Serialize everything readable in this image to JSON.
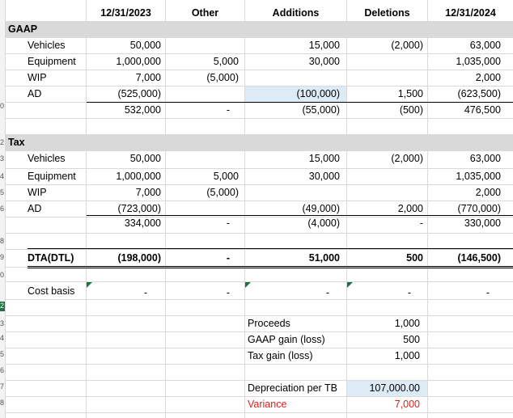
{
  "header": {
    "c1": "12/31/2023",
    "c2": "Other",
    "c3": "Additions",
    "c4": "Deletions",
    "c5": "12/31/2024"
  },
  "gaap": {
    "title": "GAAP",
    "rows": [
      {
        "label": "Vehicles",
        "v1": "50,000",
        "v2": "",
        "v3": "15,000",
        "v4": "(2,000)",
        "v5": "63,000"
      },
      {
        "label": "Equipment",
        "v1": "1,000,000",
        "v2": "5,000",
        "v3": "30,000",
        "v4": "",
        "v5": "1,035,000"
      },
      {
        "label": "WIP",
        "v1": "7,000",
        "v2": "(5,000)",
        "v3": "",
        "v4": "",
        "v5": "2,000"
      },
      {
        "label": "AD",
        "v1": "(525,000)",
        "v2": "",
        "v3": "(100,000)",
        "v4": "1,500",
        "v5": "(623,500)"
      }
    ],
    "total": {
      "v1": "532,000",
      "v2": "-",
      "v3": "(55,000)",
      "v4": "(500)",
      "v5": "476,500"
    }
  },
  "tax": {
    "title": "Tax",
    "rows": [
      {
        "label": "Vehicles",
        "v1": "50,000",
        "v2": "",
        "v3": "15,000",
        "v4": "(2,000)",
        "v5": "63,000"
      },
      {
        "label": "Equipment",
        "v1": "1,000,000",
        "v2": "5,000",
        "v3": "30,000",
        "v4": "",
        "v5": "1,035,000"
      },
      {
        "label": "WIP",
        "v1": "7,000",
        "v2": "(5,000)",
        "v3": "",
        "v4": "",
        "v5": "2,000"
      },
      {
        "label": "AD",
        "v1": "(723,000)",
        "v2": "",
        "v3": "(49,000)",
        "v4": "2,000",
        "v5": "(770,000)"
      }
    ],
    "total": {
      "v1": "334,000",
      "v2": "-",
      "v3": "(4,000)",
      "v4": "-",
      "v5": "330,000"
    }
  },
  "dta": {
    "label": "DTA(DTL)",
    "v1": "(198,000)",
    "v2": "-",
    "v3": "51,000",
    "v4": "500",
    "v5": "(146,500)"
  },
  "cost_basis": {
    "label": "Cost basis",
    "v1": "-",
    "v2": "-",
    "v3": "-",
    "v4": "-",
    "v5": "-"
  },
  "proceeds": {
    "label": "Proceeds",
    "value": "1,000"
  },
  "gaap_gain": {
    "label": "GAAP gain (loss)",
    "value": "500"
  },
  "tax_gain": {
    "label": "Tax gain (loss)",
    "value": "1,000"
  },
  "depreciation": {
    "label": "Depreciation per TB",
    "value": "107,000.00"
  },
  "variance": {
    "label": "Variance",
    "value": "7,000"
  },
  "colors": {
    "header_band": "#d9d9d9",
    "highlight": "#ddebf7",
    "variance": "#e02020",
    "indicator": "#1e7145"
  }
}
